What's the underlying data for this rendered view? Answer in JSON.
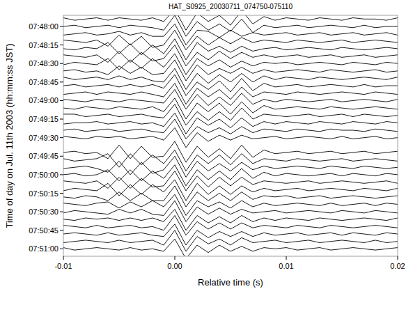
{
  "chart_data": {
    "type": "wiggle",
    "title": "HAT_S0925_20030711_074750-075110",
    "x_label": "Relative time (s)",
    "y_label": "Time of day on Jul. 11th 2003  (hh:mm:ss JST)",
    "xlim": [
      -0.01,
      0.02
    ],
    "xticks": [
      -0.01,
      {
        "value": 0,
        "label": "0.00"
      },
      0.01,
      0.02
    ],
    "ylim": [
      186,
      -9
    ],
    "yticks": [
      {
        "value": 0,
        "label": "07:48:00"
      },
      {
        "value": 15,
        "label": "07:48:15"
      },
      {
        "value": 30,
        "label": "07:48:30"
      },
      {
        "value": 45,
        "label": "07:48:45"
      },
      {
        "value": 60,
        "label": "07:49:00"
      },
      {
        "value": 75,
        "label": "07:49:15"
      },
      {
        "value": 90,
        "label": "07:49:30"
      },
      {
        "value": 105,
        "label": "07:49:45"
      },
      {
        "value": 120,
        "label": "07:50:00"
      },
      {
        "value": 135,
        "label": "07:50:15"
      },
      {
        "value": 150,
        "label": "07:50:30"
      },
      {
        "value": 165,
        "label": "07:50:45"
      },
      {
        "value": 180,
        "label": "07:51:00"
      }
    ],
    "color": "#000000",
    "x": [
      -0.01,
      -0.009,
      -0.008,
      -0.007,
      -0.006,
      -0.005,
      -0.004,
      -0.003,
      -0.002,
      -0.001,
      0,
      0.001,
      0.002,
      0.003,
      0.004,
      0.005,
      0.006,
      0.007,
      0.008,
      0.009,
      0.01,
      0.011,
      0.012,
      0.013,
      0.014,
      0.015,
      0.016,
      0.017,
      0.018,
      0.019,
      0.02
    ],
    "series": [
      {
        "time": -6,
        "values": [
          1,
          -1,
          0,
          1,
          -1,
          1,
          0,
          -1,
          1,
          -2,
          8,
          -9,
          5,
          -2,
          3,
          -5,
          7,
          -4,
          2,
          -1,
          1,
          0,
          -1,
          1,
          0,
          -1,
          1,
          0,
          0,
          -1,
          1
        ]
      },
      {
        "time": 0,
        "values": [
          0,
          1,
          -1,
          0,
          1,
          -1,
          1,
          0,
          -1,
          -3,
          9,
          -8,
          4,
          -3,
          2,
          -4,
          6,
          -5,
          1,
          -1,
          0,
          1,
          -1,
          0,
          1,
          0,
          -1,
          1,
          -1,
          0,
          0
        ]
      },
      {
        "time": 6,
        "values": [
          -1,
          0,
          1,
          -1,
          0,
          2,
          -1,
          1,
          -2,
          -2,
          8,
          -9,
          3,
          2,
          -3,
          3,
          -2,
          1,
          -1,
          0,
          1,
          -1,
          0,
          1,
          -1,
          0,
          1,
          -1,
          0,
          1,
          -1
        ]
      },
      {
        "time": 12,
        "values": [
          1,
          0,
          -1,
          1,
          -4,
          5,
          -3,
          4,
          -5,
          -3,
          9,
          -7,
          4,
          -3,
          3,
          -2,
          3,
          -1,
          1,
          0,
          -1,
          1,
          0,
          -1,
          0,
          1,
          -1,
          0,
          1,
          0,
          -1
        ]
      },
      {
        "time": 18,
        "values": [
          0,
          -1,
          1,
          0,
          5,
          -4,
          4,
          -5,
          3,
          -4,
          8,
          -9,
          5,
          -2,
          2,
          -3,
          2,
          -2,
          0,
          1,
          -1,
          0,
          1,
          0,
          -1,
          1,
          0,
          -1,
          0,
          1,
          0
        ]
      },
      {
        "time": 24,
        "values": [
          1,
          0,
          -1,
          1,
          -5,
          4,
          -5,
          3,
          -4,
          -2,
          9,
          -8,
          3,
          -3,
          4,
          -2,
          3,
          -1,
          1,
          -1,
          0,
          1,
          -1,
          0,
          1,
          -1,
          0,
          1,
          -1,
          0,
          1
        ]
      },
      {
        "time": 30,
        "values": [
          -1,
          1,
          0,
          -1,
          4,
          -5,
          3,
          -4,
          4,
          -3,
          8,
          -9,
          4,
          -2,
          3,
          -3,
          2,
          -2,
          1,
          0,
          1,
          -1,
          0,
          1,
          0,
          -1,
          1,
          0,
          -1,
          1,
          0
        ]
      },
      {
        "time": 36,
        "values": [
          0,
          1,
          -1,
          0,
          -3,
          4,
          -2,
          3,
          -3,
          -2,
          9,
          -8,
          5,
          -3,
          2,
          -2,
          3,
          -2,
          1,
          -1,
          0,
          1,
          0,
          -1,
          1,
          0,
          -1,
          0,
          1,
          -1,
          0
        ]
      },
      {
        "time": 42,
        "values": [
          1,
          -1,
          0,
          1,
          -1,
          2,
          -1,
          1,
          -2,
          -3,
          8,
          -9,
          4,
          -4,
          3,
          -3,
          4,
          -3,
          2,
          -1,
          1,
          0,
          -1,
          1,
          0,
          -1,
          0,
          1,
          0,
          -1,
          1
        ]
      },
      {
        "time": 48,
        "values": [
          0,
          1,
          -1,
          0,
          1,
          -1,
          1,
          -1,
          1,
          -2,
          9,
          -8,
          3,
          -3,
          4,
          -5,
          6,
          -4,
          2,
          -1,
          0,
          1,
          -1,
          0,
          1,
          0,
          -1,
          1,
          -1,
          0,
          0
        ]
      },
      {
        "time": 54,
        "values": [
          -1,
          0,
          1,
          -1,
          1,
          0,
          -1,
          1,
          -1,
          -3,
          8,
          -9,
          4,
          -3,
          3,
          -5,
          5,
          -3,
          1,
          0,
          -1,
          1,
          0,
          -1,
          0,
          1,
          0,
          -1,
          1,
          0,
          -1
        ]
      },
      {
        "time": 60,
        "values": [
          1,
          0,
          -1,
          1,
          0,
          -1,
          1,
          0,
          -1,
          -2,
          9,
          -7,
          5,
          -4,
          3,
          -4,
          6,
          -3,
          1,
          -1,
          1,
          0,
          -1,
          0,
          1,
          -1,
          0,
          1,
          0,
          -1,
          1
        ]
      },
      {
        "time": 66,
        "values": [
          0,
          -1,
          1,
          0,
          -1,
          1,
          0,
          -1,
          1,
          -3,
          8,
          -9,
          4,
          -3,
          4,
          -5,
          5,
          -4,
          2,
          -1,
          0,
          1,
          0,
          -1,
          1,
          0,
          -1,
          0,
          1,
          0,
          -1
        ]
      },
      {
        "time": 72,
        "values": [
          1,
          1,
          -1,
          0,
          1,
          -1,
          0,
          1,
          -1,
          -2,
          9,
          -8,
          3,
          -4,
          3,
          -4,
          6,
          -3,
          1,
          0,
          -1,
          0,
          1,
          -1,
          0,
          1,
          -1,
          1,
          0,
          -1,
          0
        ]
      },
      {
        "time": 78,
        "values": [
          -1,
          0,
          0,
          1,
          -1,
          0,
          1,
          -1,
          0,
          -3,
          8,
          -9,
          4,
          -2,
          3,
          -4,
          4,
          -3,
          1,
          -1,
          1,
          0,
          -1,
          1,
          0,
          -1,
          1,
          0,
          -1,
          1,
          0
        ]
      },
      {
        "time": 84,
        "values": [
          0,
          1,
          -1,
          0,
          1,
          -1,
          0,
          1,
          -1,
          -2,
          9,
          -7,
          3,
          -2,
          2,
          -3,
          3,
          -2,
          1,
          0,
          -1,
          1,
          0,
          -1,
          1,
          0,
          0,
          -1,
          1,
          0,
          -1
        ]
      },
      {
        "time": 90,
        "values": [
          1,
          0,
          -1,
          1,
          0,
          1,
          -1,
          0,
          1,
          -2,
          8,
          -8,
          4,
          -3,
          2,
          -2,
          2,
          -1,
          0,
          1,
          -1,
          0,
          1,
          0,
          -1,
          1,
          -1,
          0,
          1,
          -1,
          0
        ]
      },
      {
        "time": 102,
        "values": [
          0,
          1,
          -1,
          0,
          -5,
          6,
          -5,
          5,
          -4,
          -3,
          9,
          -8,
          5,
          -4,
          3,
          -5,
          6,
          -4,
          2,
          -1,
          0,
          1,
          -1,
          0,
          1,
          -1,
          0,
          1,
          -1,
          0,
          1
        ]
      },
      {
        "time": 108,
        "values": [
          1,
          -1,
          0,
          1,
          5,
          -6,
          5,
          -4,
          4,
          -3,
          8,
          -9,
          4,
          -3,
          4,
          -4,
          5,
          -3,
          1,
          0,
          -1,
          1,
          0,
          -1,
          0,
          1,
          -1,
          0,
          1,
          0,
          -1
        ]
      },
      {
        "time": 114,
        "values": [
          -1,
          0,
          1,
          -1,
          -4,
          5,
          -6,
          4,
          -5,
          -2,
          9,
          -8,
          5,
          -3,
          3,
          -3,
          4,
          -2,
          1,
          -1,
          0,
          1,
          0,
          -1,
          1,
          0,
          -1,
          1,
          0,
          -1,
          0
        ]
      },
      {
        "time": 120,
        "values": [
          0,
          1,
          -1,
          0,
          4,
          -5,
          4,
          -5,
          3,
          -3,
          8,
          -9,
          4,
          -4,
          3,
          -4,
          5,
          -3,
          2,
          -1,
          1,
          0,
          -1,
          0,
          1,
          -1,
          1,
          0,
          -1,
          1,
          0
        ]
      },
      {
        "time": 126,
        "values": [
          1,
          0,
          -1,
          1,
          -5,
          4,
          -5,
          3,
          -4,
          -3,
          9,
          -7,
          5,
          -4,
          4,
          -3,
          4,
          -2,
          1,
          0,
          -1,
          0,
          1,
          -1,
          0,
          1,
          0,
          -1,
          0,
          1,
          -1
        ]
      },
      {
        "time": 132,
        "values": [
          -1,
          1,
          0,
          -1,
          5,
          -5,
          4,
          -4,
          4,
          -2,
          8,
          -9,
          5,
          -4,
          3,
          -4,
          3,
          -2,
          1,
          -1,
          0,
          1,
          -1,
          0,
          1,
          0,
          -1,
          1,
          0,
          -1,
          1
        ]
      },
      {
        "time": 138,
        "values": [
          0,
          -1,
          1,
          0,
          -3,
          4,
          -3,
          3,
          -3,
          -3,
          9,
          -8,
          4,
          -3,
          3,
          -3,
          4,
          -2,
          1,
          0,
          1,
          -1,
          0,
          1,
          -1,
          0,
          1,
          0,
          -1,
          0,
          1
        ]
      },
      {
        "time": 144,
        "values": [
          1,
          0,
          -1,
          1,
          2,
          -3,
          2,
          -2,
          3,
          -2,
          8,
          -9,
          3,
          -2,
          2,
          -3,
          3,
          -2,
          1,
          -1,
          0,
          1,
          0,
          -1,
          1,
          -1,
          0,
          1,
          -1,
          1,
          0
        ]
      },
      {
        "time": 150,
        "values": [
          -1,
          1,
          0,
          -1,
          -2,
          2,
          -1,
          2,
          -2,
          -3,
          9,
          -8,
          4,
          -2,
          3,
          -2,
          2,
          -1,
          0,
          1,
          -1,
          0,
          1,
          0,
          -1,
          1,
          0,
          -1,
          1,
          0,
          -1
        ]
      },
      {
        "time": 156,
        "values": [
          0,
          -1,
          1,
          0,
          1,
          -1,
          1,
          -1,
          1,
          -2,
          8,
          -9,
          3,
          -3,
          2,
          -3,
          3,
          -2,
          1,
          -1,
          1,
          0,
          -1,
          1,
          0,
          -1,
          0,
          1,
          0,
          -1,
          1
        ]
      },
      {
        "time": 162,
        "values": [
          1,
          0,
          -1,
          1,
          -1,
          0,
          1,
          -1,
          0,
          -3,
          9,
          -7,
          4,
          -2,
          3,
          -2,
          3,
          -1,
          1,
          0,
          -1,
          1,
          0,
          -1,
          1,
          0,
          -1,
          0,
          1,
          0,
          -1
        ]
      },
      {
        "time": 168,
        "values": [
          0,
          1,
          0,
          -1,
          1,
          -1,
          0,
          1,
          -1,
          -2,
          8,
          -9,
          3,
          -3,
          2,
          -2,
          2,
          -2,
          1,
          -1,
          0,
          1,
          -1,
          0,
          1,
          -1,
          1,
          0,
          -1,
          1,
          0
        ]
      },
      {
        "time": 174,
        "values": [
          -1,
          0,
          1,
          0,
          -1,
          1,
          -1,
          0,
          1,
          -3,
          9,
          -8,
          4,
          -2,
          2,
          -3,
          3,
          -1,
          0,
          1,
          -1,
          0,
          1,
          -1,
          0,
          1,
          0,
          -1,
          1,
          -1,
          0
        ]
      },
      {
        "time": 180,
        "values": [
          1,
          -1,
          0,
          1,
          0,
          -1,
          1,
          -1,
          0,
          -2,
          8,
          -8,
          3,
          -3,
          3,
          -2,
          2,
          -2,
          1,
          0,
          1,
          -1,
          0,
          1,
          -1,
          0,
          1,
          0,
          -1,
          0,
          1
        ]
      }
    ]
  }
}
